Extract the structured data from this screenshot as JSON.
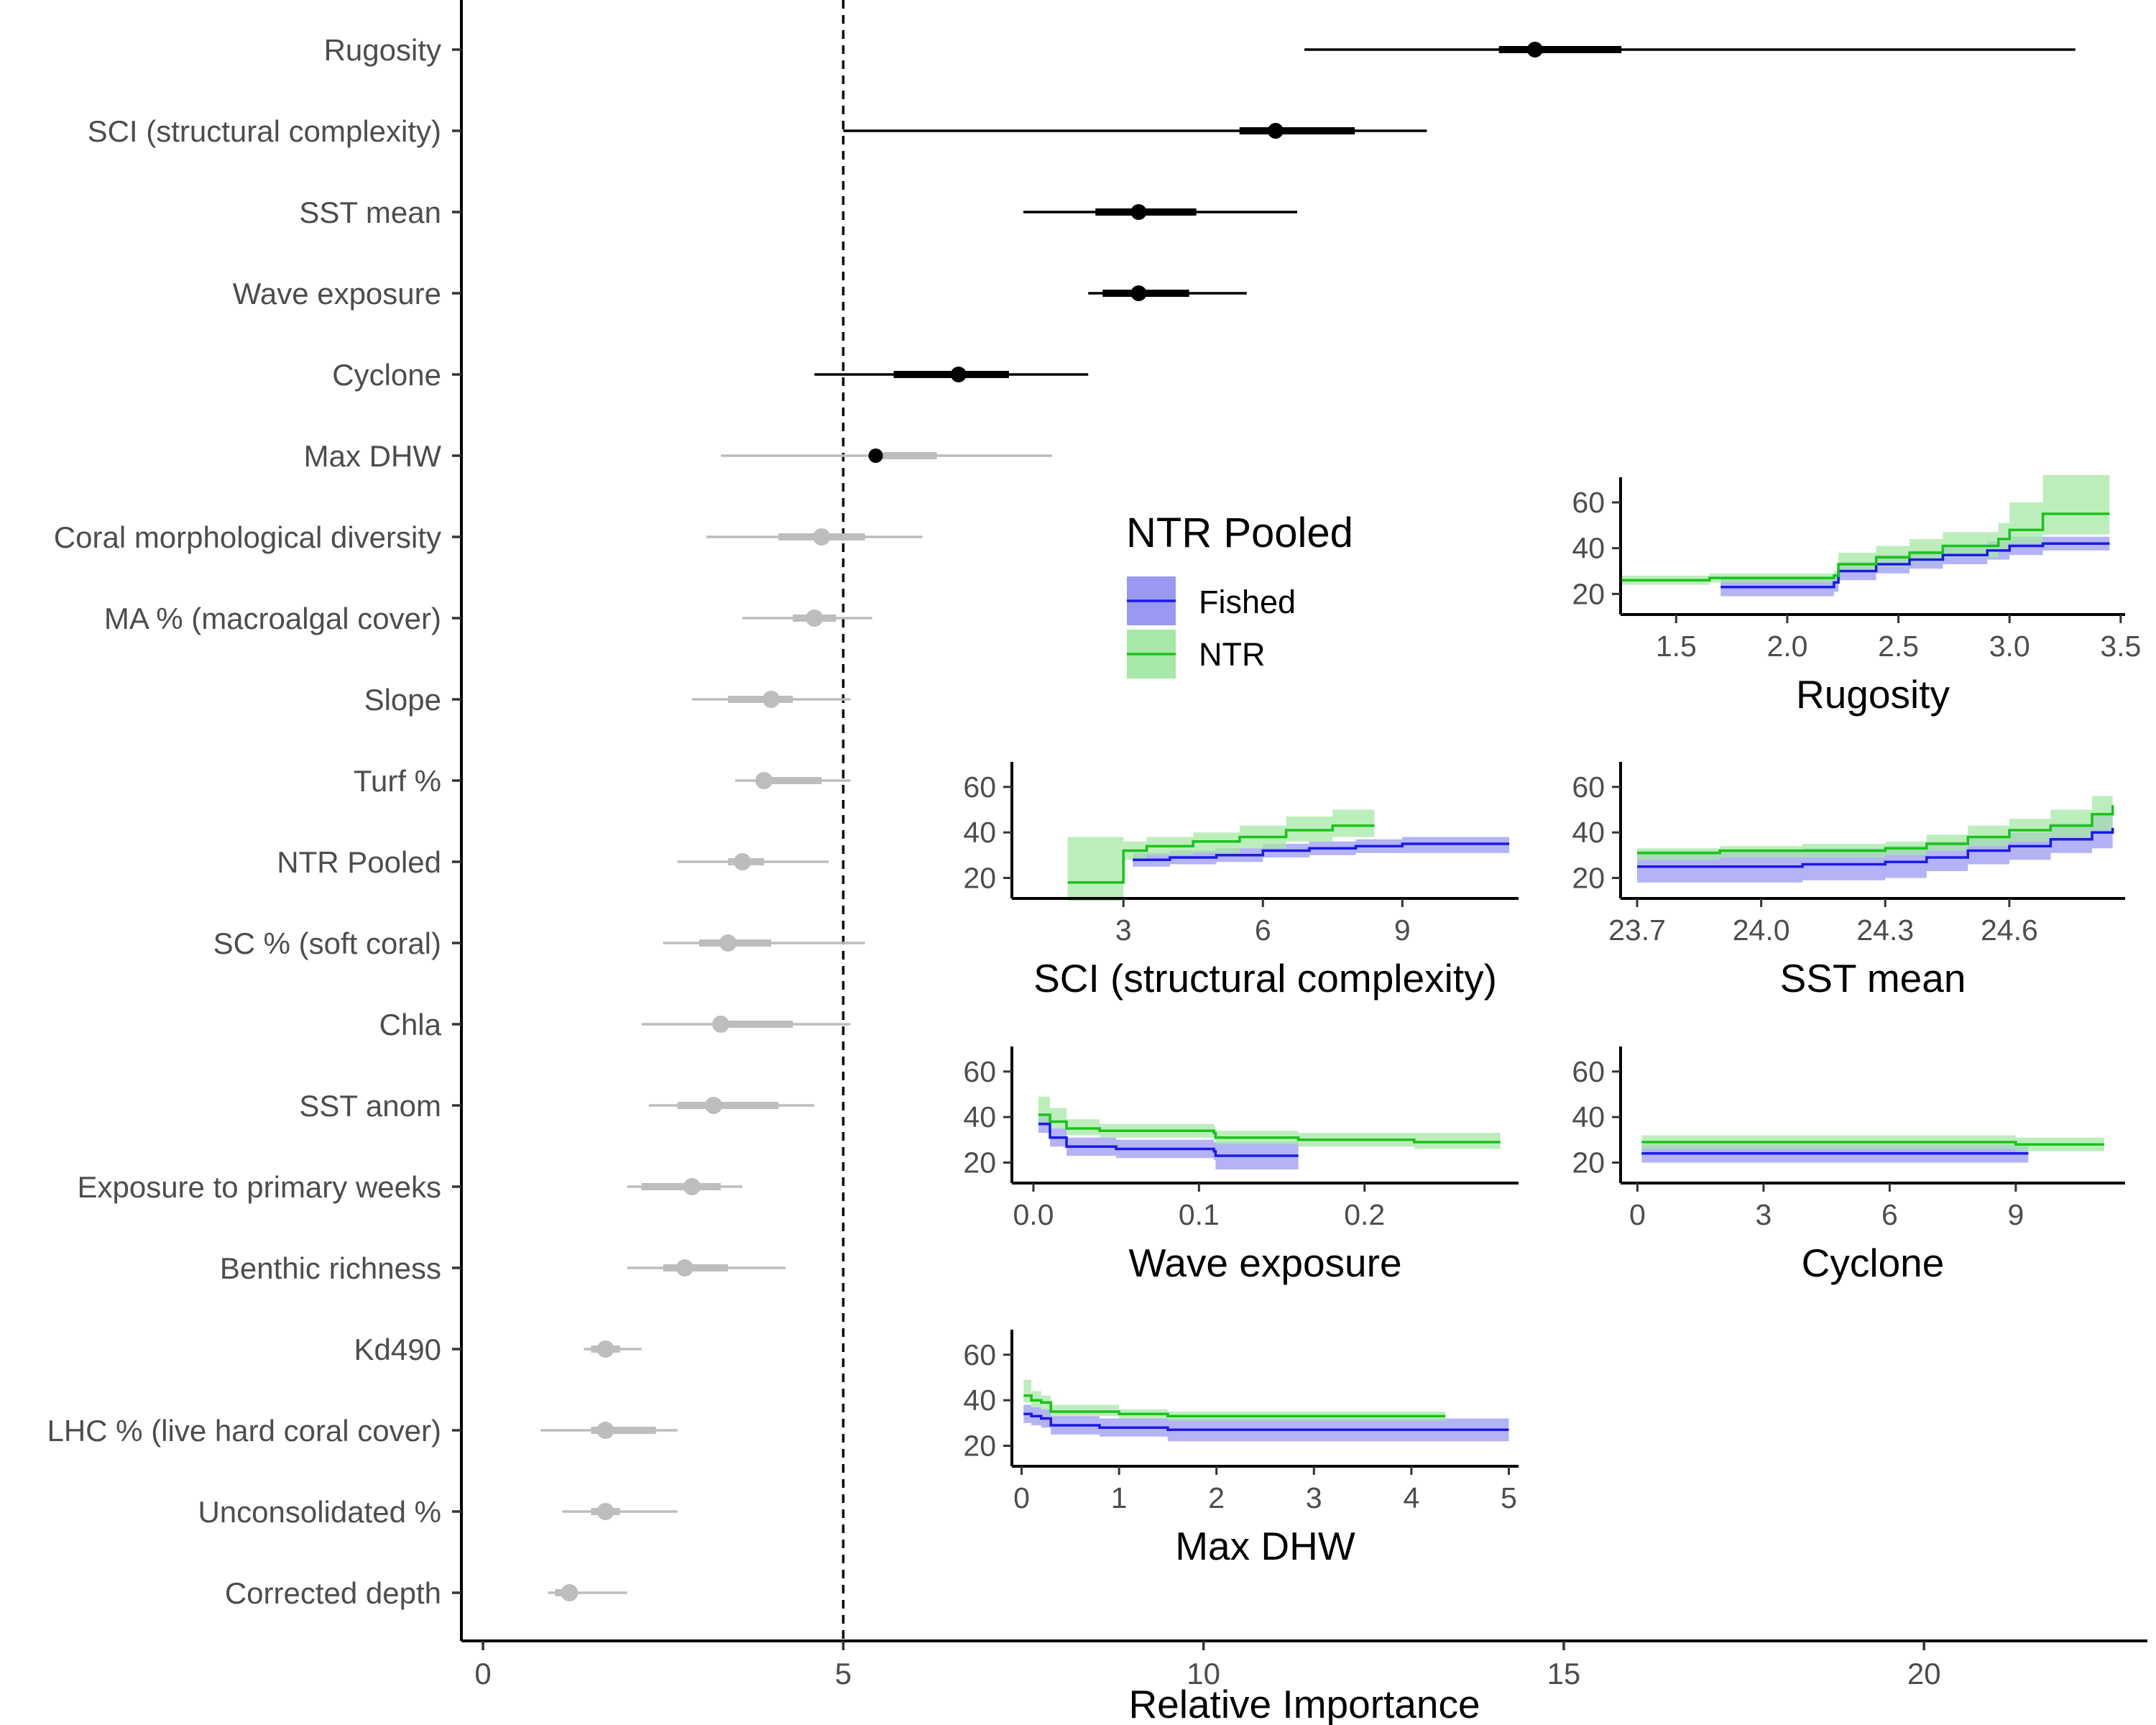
{
  "chart_data": [
    {
      "type": "dot-interval",
      "xlabel": "Relative Importance",
      "xlim": [
        -0.3,
        23.1
      ],
      "xticks": [
        0,
        5,
        10,
        15,
        20
      ],
      "reference_line": 5,
      "colors": {
        "significant": "#000000",
        "nonsignificant": "#bdbdbd"
      },
      "rows": [
        {
          "label": "Rugosity",
          "mean": 14.6,
          "inner": [
            14.1,
            15.8
          ],
          "outer": [
            11.4,
            22.1
          ],
          "significant": true
        },
        {
          "label": "SCI (structural complexity)",
          "mean": 11.0,
          "inner": [
            10.5,
            12.1
          ],
          "outer": [
            5.0,
            13.1
          ],
          "significant": true
        },
        {
          "label": "SST mean",
          "mean": 9.1,
          "inner": [
            8.5,
            9.9
          ],
          "outer": [
            7.5,
            11.3
          ],
          "significant": true
        },
        {
          "label": "Wave exposure",
          "mean": 9.1,
          "inner": [
            8.6,
            9.8
          ],
          "outer": [
            8.4,
            10.6
          ],
          "significant": true
        },
        {
          "label": "Cyclone",
          "mean": 6.6,
          "inner": [
            5.7,
            7.3
          ],
          "outer": [
            4.6,
            8.4
          ],
          "significant": true
        },
        {
          "label": "Max DHW",
          "mean": 5.45,
          "inner": [
            5.4,
            6.3
          ],
          "outer": [
            3.3,
            7.9
          ],
          "significant": true,
          "mixed": true
        },
        {
          "label": "Coral morphological diversity",
          "mean": 4.7,
          "inner": [
            4.1,
            5.3
          ],
          "outer": [
            3.1,
            6.1
          ],
          "significant": false
        },
        {
          "label": "MA % (macroalgal cover)",
          "mean": 4.6,
          "inner": [
            4.3,
            4.9
          ],
          "outer": [
            3.6,
            5.4
          ],
          "significant": false
        },
        {
          "label": "Slope",
          "mean": 4.0,
          "inner": [
            3.4,
            4.3
          ],
          "outer": [
            2.9,
            5.1
          ],
          "significant": false
        },
        {
          "label": "Turf %",
          "mean": 3.9,
          "inner": [
            3.8,
            4.7
          ],
          "outer": [
            3.5,
            5.1
          ],
          "significant": false
        },
        {
          "label": "NTR Pooled",
          "mean": 3.6,
          "inner": [
            3.4,
            3.9
          ],
          "outer": [
            2.7,
            4.8
          ],
          "significant": false
        },
        {
          "label": "SC % (soft coral)",
          "mean": 3.4,
          "inner": [
            3.0,
            4.0
          ],
          "outer": [
            2.5,
            5.3
          ],
          "significant": false
        },
        {
          "label": "Chla",
          "mean": 3.3,
          "inner": [
            3.2,
            4.3
          ],
          "outer": [
            2.2,
            5.1
          ],
          "significant": false
        },
        {
          "label": "SST anom",
          "mean": 3.2,
          "inner": [
            2.7,
            4.1
          ],
          "outer": [
            2.3,
            4.6
          ],
          "significant": false
        },
        {
          "label": "Exposure to primary weeks",
          "mean": 2.9,
          "inner": [
            2.2,
            3.3
          ],
          "outer": [
            2.0,
            3.6
          ],
          "significant": false
        },
        {
          "label": "Benthic richness",
          "mean": 2.8,
          "inner": [
            2.5,
            3.4
          ],
          "outer": [
            2.0,
            4.2
          ],
          "significant": false
        },
        {
          "label": "Kd490",
          "mean": 1.7,
          "inner": [
            1.5,
            1.9
          ],
          "outer": [
            1.4,
            2.2
          ],
          "significant": false
        },
        {
          "label": "LHC % (live hard coral cover)",
          "mean": 1.7,
          "inner": [
            1.5,
            2.4
          ],
          "outer": [
            0.8,
            2.7
          ],
          "significant": false
        },
        {
          "label": "Unconsolidated %",
          "mean": 1.7,
          "inner": [
            1.5,
            1.9
          ],
          "outer": [
            1.1,
            2.7
          ],
          "significant": false
        },
        {
          "label": "Corrected depth",
          "mean": 1.2,
          "inner": [
            1.0,
            1.3
          ],
          "outer": [
            0.9,
            2.0
          ],
          "significant": false
        }
      ]
    },
    {
      "type": "line",
      "title": "Rugosity",
      "xticks": [
        "1.5",
        "2.0",
        "2.5",
        "3.0",
        "3.5"
      ],
      "xtick_values": [
        1.5,
        2.0,
        2.5,
        3.0,
        3.5
      ],
      "xlim": [
        1.25,
        3.52
      ],
      "yticks": [
        20,
        40,
        60
      ],
      "ylim": [
        11,
        71
      ],
      "series": [
        {
          "name": "NTR",
          "x": [
            1.25,
            1.55,
            1.65,
            2.0,
            2.21,
            2.23,
            2.4,
            2.55,
            2.7,
            2.95,
            3.0,
            3.15,
            3.45
          ],
          "y": [
            26,
            26,
            27,
            27,
            28,
            33,
            36,
            38,
            41,
            44,
            48,
            55,
            55
          ],
          "lower": [
            24,
            24,
            25,
            25,
            26,
            30,
            32,
            34,
            36,
            39,
            42,
            46,
            46
          ],
          "upper": [
            28,
            28,
            29,
            29,
            30,
            38,
            41,
            44,
            47,
            51,
            60,
            72,
            72
          ]
        },
        {
          "name": "Fished",
          "x": [
            1.7,
            2.0,
            2.21,
            2.23,
            2.4,
            2.55,
            2.7,
            2.9,
            3.0,
            3.15,
            3.45
          ],
          "y": [
            23,
            23,
            25,
            30,
            33,
            35,
            37,
            39,
            41,
            42,
            42
          ],
          "lower": [
            19,
            19,
            21,
            26,
            29,
            31,
            33,
            35,
            37,
            39,
            39
          ],
          "upper": [
            27,
            27,
            29,
            34,
            37,
            39,
            41,
            43,
            45,
            45,
            45
          ]
        }
      ]
    },
    {
      "type": "line",
      "title": "SCI (structural complexity)",
      "xticks": [
        "3",
        "6",
        "9"
      ],
      "xtick_values": [
        3,
        6,
        9
      ],
      "xlim": [
        0.6,
        11.5
      ],
      "yticks": [
        20,
        40,
        60
      ],
      "ylim": [
        11,
        71
      ],
      "series": [
        {
          "name": "NTR",
          "x": [
            1.8,
            2.9,
            3.0,
            3.5,
            4.5,
            5.5,
            6.5,
            7.5,
            8.4
          ],
          "y": [
            18,
            18,
            32,
            34,
            36,
            38,
            41,
            43,
            43
          ],
          "lower": [
            10,
            10,
            28,
            30,
            31,
            33,
            36,
            38,
            38
          ],
          "upper": [
            38,
            38,
            36,
            38,
            40,
            43,
            47,
            50,
            50
          ]
        },
        {
          "name": "Fished",
          "x": [
            3.2,
            4.0,
            5.0,
            6.0,
            7.0,
            8.0,
            9.0,
            11.3
          ],
          "y": [
            28,
            29,
            30,
            32,
            33,
            34,
            35,
            35
          ],
          "lower": [
            25,
            26,
            27,
            29,
            30,
            31,
            31,
            31
          ],
          "upper": [
            31,
            32,
            33,
            35,
            36,
            37,
            38,
            38
          ]
        }
      ]
    },
    {
      "type": "line",
      "title": "SST mean",
      "xticks": [
        "23.7",
        "24.0",
        "24.3",
        "24.6"
      ],
      "xtick_values": [
        23.7,
        24.0,
        24.3,
        24.6
      ],
      "xlim": [
        23.66,
        24.88
      ],
      "yticks": [
        20,
        40,
        60
      ],
      "ylim": [
        11,
        71
      ],
      "series": [
        {
          "name": "NTR",
          "x": [
            23.7,
            23.9,
            24.1,
            24.3,
            24.4,
            24.5,
            24.6,
            24.7,
            24.8,
            24.83,
            24.85
          ],
          "y": [
            31,
            32,
            32,
            33,
            35,
            38,
            41,
            43,
            48,
            48,
            52
          ],
          "lower": [
            28,
            29,
            29,
            30,
            32,
            34,
            36,
            38,
            41,
            41,
            44
          ],
          "upper": [
            33,
            34,
            35,
            36,
            39,
            43,
            46,
            50,
            56,
            56,
            73
          ]
        },
        {
          "name": "Fished",
          "x": [
            23.7,
            23.9,
            24.1,
            24.3,
            24.4,
            24.5,
            24.6,
            24.7,
            24.8,
            24.85
          ],
          "y": [
            25,
            25,
            26,
            27,
            29,
            32,
            34,
            37,
            40,
            42
          ],
          "lower": [
            18,
            18,
            19,
            20,
            23,
            26,
            28,
            31,
            33,
            34
          ],
          "upper": [
            32,
            32,
            33,
            34,
            36,
            38,
            40,
            44,
            48,
            51
          ]
        }
      ]
    },
    {
      "type": "line",
      "title": "Wave exposure",
      "xticks": [
        "0.0",
        "0.1",
        "0.2"
      ],
      "xtick_values": [
        0.0,
        0.1,
        0.2
      ],
      "xlim": [
        -0.013,
        0.293
      ],
      "yticks": [
        20,
        40,
        60
      ],
      "ylim": [
        11,
        71
      ],
      "series": [
        {
          "name": "NTR",
          "x": [
            0.003,
            0.01,
            0.02,
            0.04,
            0.08,
            0.109,
            0.11,
            0.16,
            0.23,
            0.282
          ],
          "y": [
            41,
            38,
            35,
            34,
            34,
            33,
            31,
            30,
            29,
            29
          ],
          "lower": [
            38,
            35,
            32,
            31,
            31,
            30,
            28,
            27,
            26,
            26
          ],
          "upper": [
            49,
            44,
            39,
            37,
            37,
            36,
            34,
            33,
            33,
            33
          ]
        },
        {
          "name": "Fished",
          "x": [
            0.003,
            0.01,
            0.02,
            0.05,
            0.1,
            0.109,
            0.11,
            0.16
          ],
          "y": [
            37,
            31,
            27,
            26,
            26,
            25,
            23,
            23
          ],
          "lower": [
            33,
            27,
            23,
            22,
            22,
            21,
            17,
            17
          ],
          "upper": [
            41,
            35,
            31,
            30,
            30,
            29,
            29,
            29
          ]
        }
      ]
    },
    {
      "type": "line",
      "title": "Cyclone",
      "xticks": [
        "0",
        "3",
        "6",
        "9"
      ],
      "xtick_values": [
        0,
        3,
        6,
        9
      ],
      "xlim": [
        -0.4,
        11.6
      ],
      "yticks": [
        20,
        40,
        60
      ],
      "ylim": [
        11,
        71
      ],
      "series": [
        {
          "name": "NTR",
          "x": [
            0.1,
            3,
            6,
            9,
            11.1
          ],
          "y": [
            29,
            29,
            29,
            28,
            28
          ],
          "lower": [
            26,
            26,
            26,
            25,
            25
          ],
          "upper": [
            32,
            32,
            32,
            31,
            31
          ]
        },
        {
          "name": "Fished",
          "x": [
            0.1,
            3,
            6,
            9.3
          ],
          "y": [
            24,
            24,
            24,
            24
          ],
          "lower": [
            20,
            20,
            20,
            20
          ],
          "upper": [
            28,
            28,
            28,
            28
          ]
        }
      ]
    },
    {
      "type": "line",
      "title": "Max DHW",
      "xticks": [
        "0",
        "1",
        "2",
        "3",
        "4",
        "5"
      ],
      "xtick_values": [
        0,
        1,
        2,
        3,
        4,
        5
      ],
      "xlim": [
        -0.1,
        5.1
      ],
      "yticks": [
        20,
        40,
        60
      ],
      "ylim": [
        11,
        71
      ],
      "series": [
        {
          "name": "NTR",
          "x": [
            0.02,
            0.1,
            0.2,
            0.3,
            1.0,
            1.5,
            4.35
          ],
          "y": [
            42,
            40,
            39,
            35,
            34,
            33,
            33
          ],
          "lower": [
            39,
            37,
            36,
            33,
            32,
            31,
            31
          ],
          "upper": [
            49,
            44,
            42,
            38,
            36,
            35,
            35
          ]
        },
        {
          "name": "Fished",
          "x": [
            0.02,
            0.1,
            0.2,
            0.3,
            0.8,
            1.5,
            5.0
          ],
          "y": [
            34,
            33,
            32,
            29,
            28,
            27,
            27
          ],
          "lower": [
            30,
            29,
            28,
            25,
            24,
            22,
            22
          ],
          "upper": [
            38,
            37,
            36,
            33,
            32,
            32,
            32
          ]
        }
      ]
    }
  ],
  "legend": {
    "title": "NTR Pooled",
    "items": [
      {
        "label": "Fished",
        "line": "#1a1ae6",
        "fill": "#9999f2"
      },
      {
        "label": "NTR",
        "line": "#1ac21a",
        "fill": "#a6e8a6"
      }
    ]
  }
}
